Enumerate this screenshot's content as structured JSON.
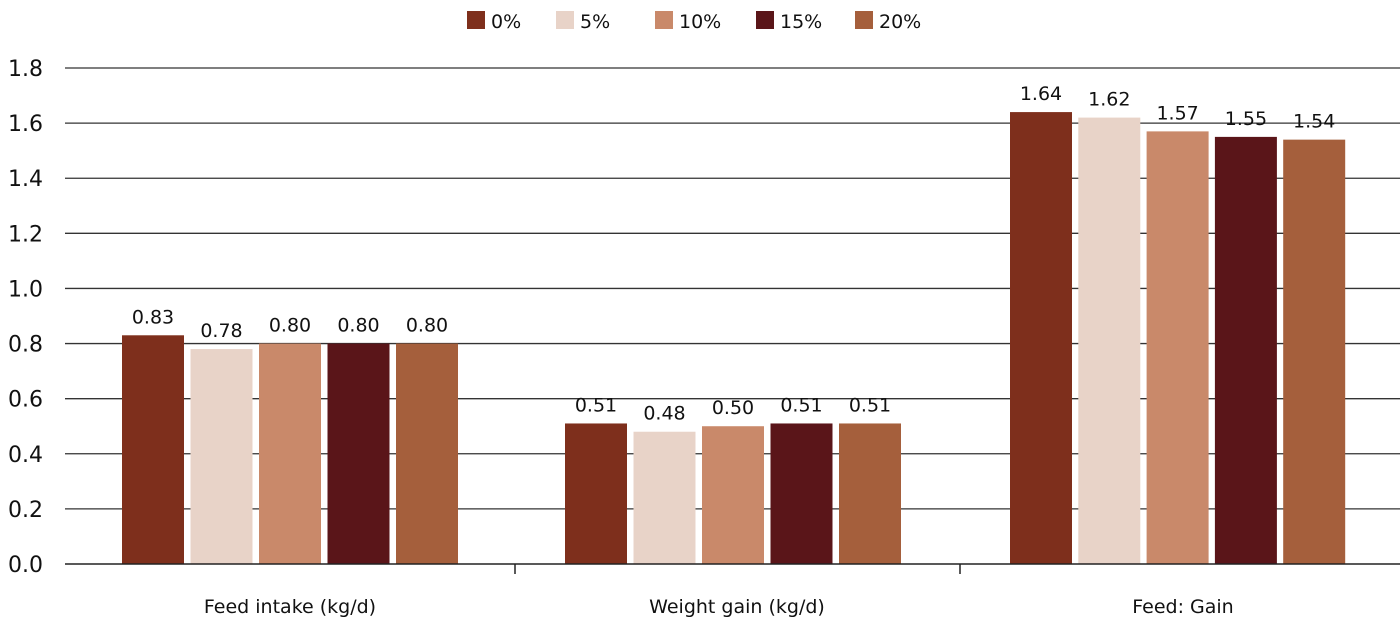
{
  "chart_data": {
    "type": "bar",
    "categories": [
      "Feed intake (kg/d)",
      "Weight gain (kg/d)",
      "Feed: Gain"
    ],
    "series": [
      {
        "name": "0%",
        "values": [
          0.83,
          0.51,
          1.64
        ],
        "color": "#7e2f1c"
      },
      {
        "name": "5%",
        "values": [
          0.78,
          0.48,
          1.62
        ],
        "color": "#e8d3c8"
      },
      {
        "name": "10%",
        "values": [
          0.8,
          0.5,
          1.57
        ],
        "color": "#c9896a"
      },
      {
        "name": "15%",
        "values": [
          0.8,
          0.51,
          1.55
        ],
        "color": "#5a1519"
      },
      {
        "name": "20%",
        "values": [
          0.8,
          0.51,
          1.54
        ],
        "color": "#a55f3c"
      }
    ],
    "data_labels": [
      [
        "0.83",
        "0.51",
        "1.64"
      ],
      [
        "0.78",
        "0.48",
        "1.62"
      ],
      [
        "0.80",
        "0.50",
        "1.57"
      ],
      [
        "0.80",
        "0.51",
        "1.55"
      ],
      [
        "0.80",
        "0.51",
        "1.54"
      ]
    ],
    "y_ticks": [
      "0.0",
      "0.2",
      "0.4",
      "0.6",
      "0.8",
      "1.0",
      "1.2",
      "1.4",
      "1.6",
      "1.8"
    ],
    "ylim": [
      0,
      1.8
    ],
    "grid": true,
    "legend_position": "top-center",
    "title": "",
    "xlabel": "",
    "ylabel": ""
  }
}
